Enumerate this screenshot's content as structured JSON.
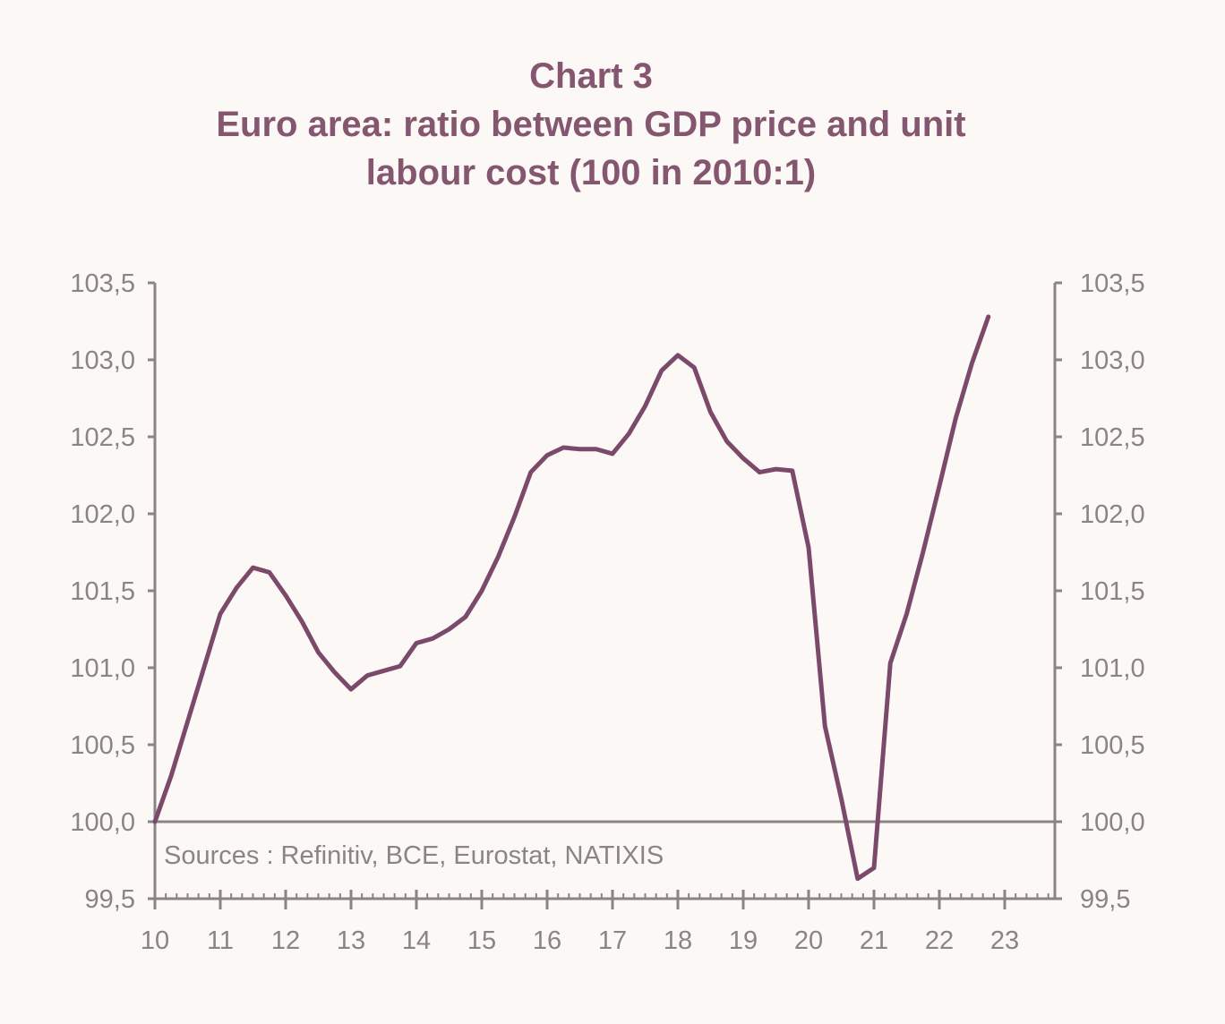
{
  "chart_data": {
    "type": "line",
    "title": "Chart 3",
    "subtitle": "Euro area: ratio between GDP price and unit labour cost (100 in 2010:1)",
    "xlabel": "",
    "ylabel": "",
    "xlim": [
      10,
      23.6
    ],
    "ylim": [
      99.5,
      103.5
    ],
    "y_ticks": [
      "99,5",
      "100,0",
      "100,5",
      "101,0",
      "101,5",
      "102,0",
      "102,5",
      "103,0",
      "103,5"
    ],
    "x_ticks": [
      "10",
      "11",
      "12",
      "13",
      "14",
      "15",
      "16",
      "17",
      "18",
      "19",
      "20",
      "21",
      "22",
      "23"
    ],
    "grid": false,
    "reference_line": 100,
    "dual_y_axis": true,
    "annotation": "Sources : Refinitiv, BCE, Eurostat, NATIXIS",
    "colors": {
      "line": "#7b4a6b",
      "axis": "#8a8583",
      "title": "#85566f",
      "background": "#fcf8f5"
    },
    "x": [
      10.0,
      10.25,
      10.5,
      10.75,
      11.0,
      11.25,
      11.5,
      11.75,
      12.0,
      12.25,
      12.5,
      12.75,
      13.0,
      13.25,
      13.5,
      13.75,
      14.0,
      14.25,
      14.5,
      14.75,
      15.0,
      15.25,
      15.5,
      15.75,
      16.0,
      16.25,
      16.5,
      16.75,
      17.0,
      17.25,
      17.5,
      17.75,
      18.0,
      18.25,
      18.5,
      18.75,
      19.0,
      19.25,
      19.5,
      19.75,
      20.0,
      20.25,
      20.5,
      20.75,
      21.0,
      21.25,
      21.5,
      21.75,
      22.0,
      22.25,
      22.5,
      22.75
    ],
    "values": [
      100.0,
      100.3,
      100.65,
      101.0,
      101.35,
      101.52,
      101.65,
      101.62,
      101.47,
      101.3,
      101.1,
      100.97,
      100.86,
      100.95,
      100.98,
      101.01,
      101.16,
      101.19,
      101.25,
      101.33,
      101.5,
      101.72,
      101.98,
      102.27,
      102.38,
      102.43,
      102.42,
      102.42,
      102.39,
      102.52,
      102.7,
      102.93,
      103.03,
      102.95,
      102.66,
      102.47,
      102.36,
      102.27,
      102.29,
      102.28,
      101.78,
      100.62,
      100.15,
      99.63,
      99.7,
      101.03,
      101.35,
      101.75,
      102.18,
      102.62,
      102.98,
      103.28
    ]
  }
}
